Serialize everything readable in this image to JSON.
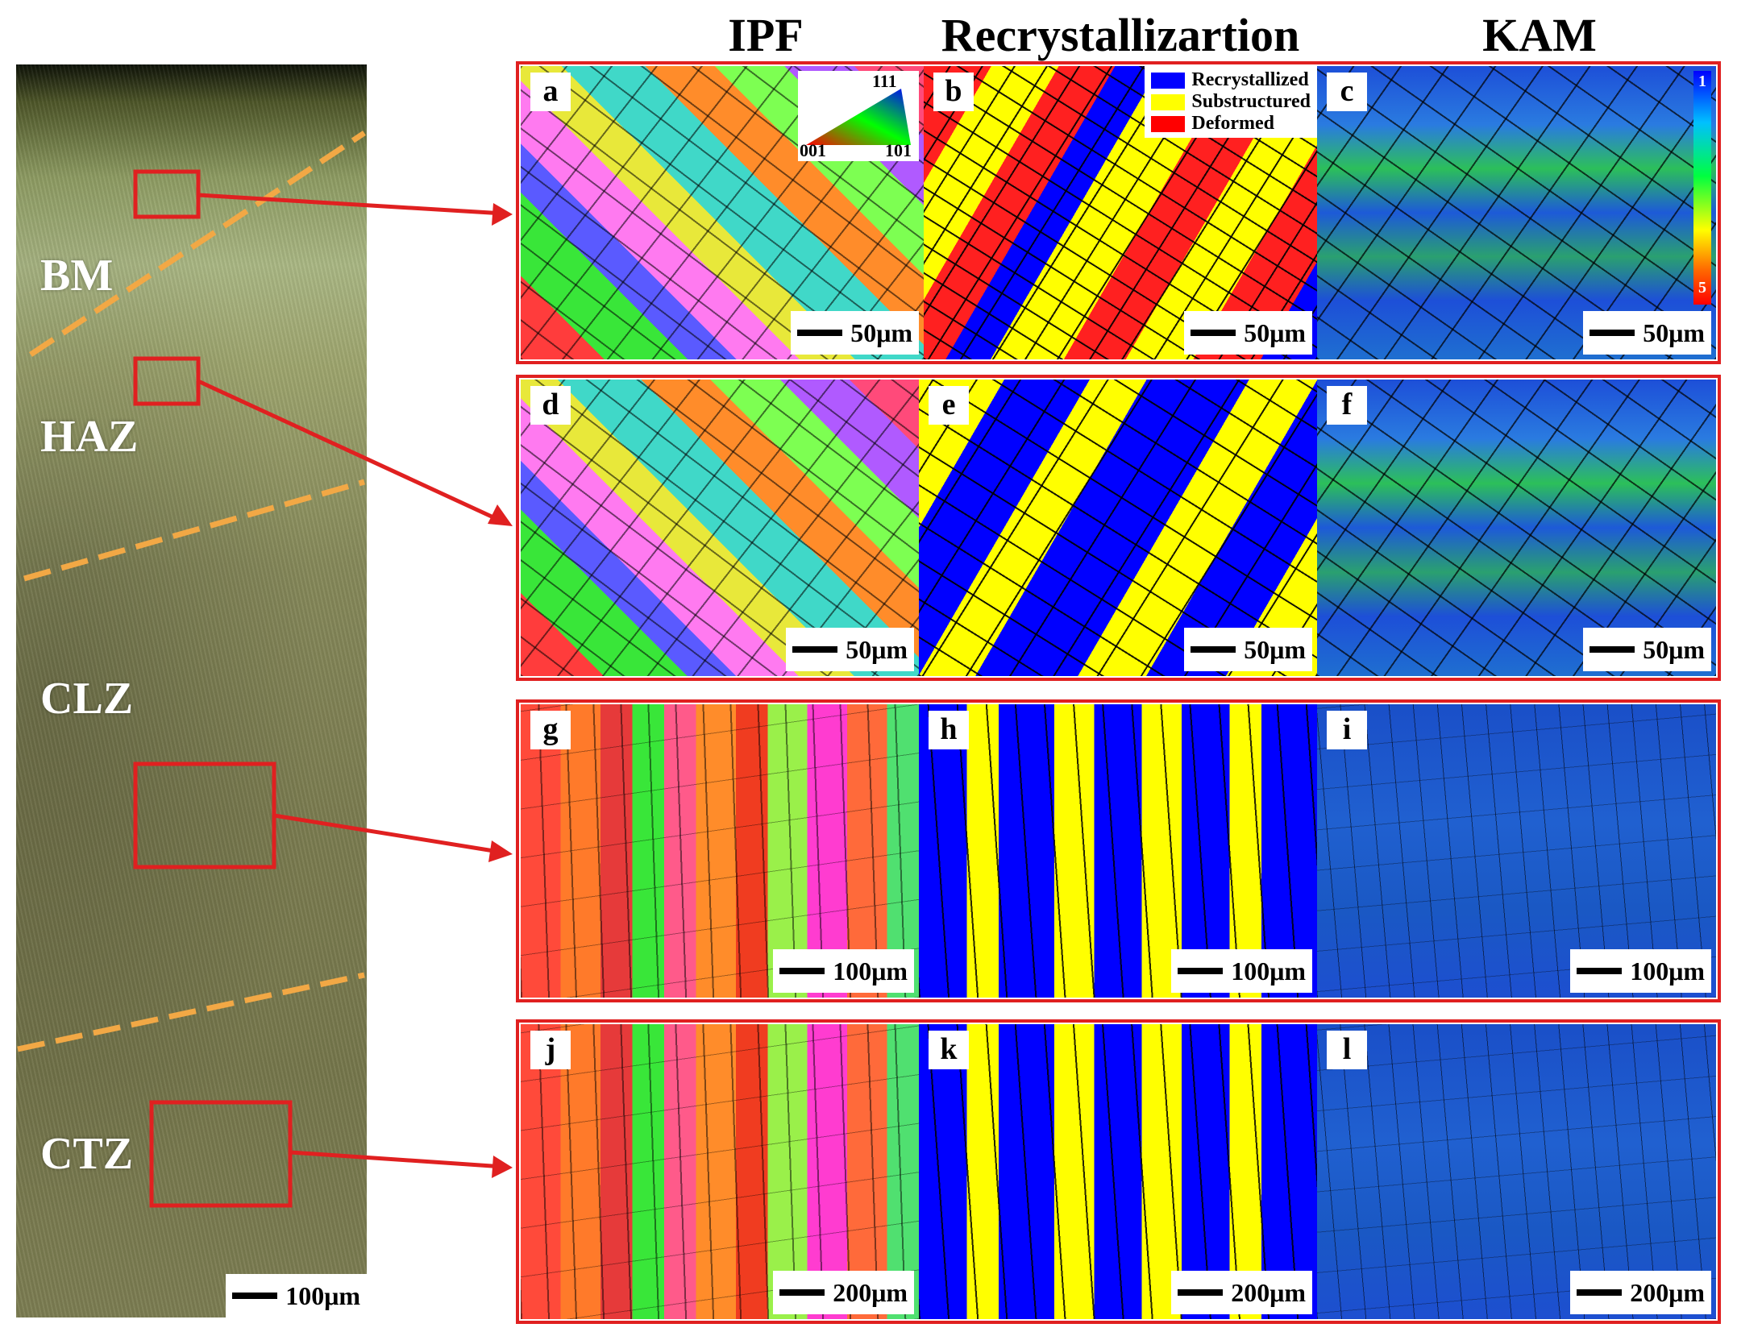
{
  "column_headers": {
    "ipf": "IPF",
    "recrystallization": "Recrystallizartion",
    "kam": "KAM"
  },
  "micrograph": {
    "zones": [
      "BM",
      "HAZ",
      "CLZ",
      "CTZ"
    ],
    "scale": "100μm"
  },
  "ipf_triangle": {
    "top": "111",
    "left": "001",
    "right": "101"
  },
  "recrystallization_legend": [
    {
      "label": "Recrystallized",
      "color": "#0000ff"
    },
    {
      "label": "Substructured",
      "color": "#ffff00"
    },
    {
      "label": "Deformed",
      "color": "#ff0000"
    }
  ],
  "kam_colorbar": {
    "min": "1",
    "max": "5"
  },
  "rows": [
    {
      "panels": [
        {
          "letter": "a",
          "scale": "50μm"
        },
        {
          "letter": "b",
          "scale": "50μm"
        },
        {
          "letter": "c",
          "scale": "50μm"
        }
      ]
    },
    {
      "panels": [
        {
          "letter": "d",
          "scale": "50μm"
        },
        {
          "letter": "e",
          "scale": "50μm"
        },
        {
          "letter": "f",
          "scale": "50μm"
        }
      ]
    },
    {
      "panels": [
        {
          "letter": "g",
          "scale": "100μm"
        },
        {
          "letter": "h",
          "scale": "100μm"
        },
        {
          "letter": "i",
          "scale": "100μm"
        }
      ]
    },
    {
      "panels": [
        {
          "letter": "j",
          "scale": "200μm"
        },
        {
          "letter": "k",
          "scale": "200μm"
        },
        {
          "letter": "l",
          "scale": "200μm"
        }
      ]
    }
  ],
  "colors": {
    "frame": "#e02020",
    "dashed_boundary": "#f2a845",
    "arrow": "#e02020"
  }
}
